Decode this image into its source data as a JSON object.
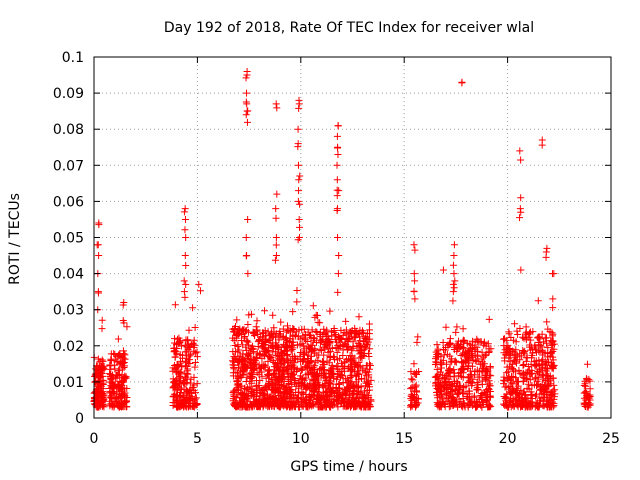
{
  "chart_data": {
    "type": "scatter",
    "title": "Day 192 of 2018, Rate Of TEC Index for receiver wlal",
    "xlabel": "GPS time / hours",
    "ylabel": "ROTI / TECUs",
    "xlim": [
      0,
      25
    ],
    "ylim": [
      0,
      0.1
    ],
    "xticks": [
      "0",
      "5",
      "10",
      "15",
      "20",
      "25"
    ],
    "yticks": [
      "0",
      "0.01",
      "0.02",
      "0.03",
      "0.04",
      "0.05",
      "0.06",
      "0.07",
      "0.08",
      "0.09",
      "0.1"
    ],
    "grid": true,
    "marker": "+",
    "marker_color": "#ff0000",
    "series": [
      {
        "name": "ROTI",
        "clusters": [
          {
            "x_start": 0.0,
            "x_end": 0.5,
            "typical_max": 0.017,
            "n": 140
          },
          {
            "x_start": 0.75,
            "x_end": 1.6,
            "typical_max": 0.018,
            "n": 170
          },
          {
            "x_start": 3.8,
            "x_end": 5.0,
            "typical_max": 0.022,
            "n": 230
          },
          {
            "x_start": 6.7,
            "x_end": 13.4,
            "typical_max": 0.025,
            "n": 1500
          },
          {
            "x_start": 15.3,
            "x_end": 15.7,
            "typical_max": 0.013,
            "n": 50
          },
          {
            "x_start": 16.5,
            "x_end": 19.2,
            "typical_max": 0.022,
            "n": 420
          },
          {
            "x_start": 19.8,
            "x_end": 22.3,
            "typical_max": 0.024,
            "n": 430
          },
          {
            "x_start": 23.7,
            "x_end": 24.0,
            "typical_max": 0.011,
            "n": 40
          }
        ],
        "peaks": [
          {
            "x": 0.2,
            "values": [
              0.054,
              0.048,
              0.045,
              0.04,
              0.035,
              0.03
            ]
          },
          {
            "x": 1.4,
            "values": [
              0.032,
              0.027
            ]
          },
          {
            "x": 4.4,
            "values": [
              0.058,
              0.055,
              0.05,
              0.045,
              0.038,
              0.035
            ]
          },
          {
            "x": 5.1,
            "values": [
              0.037
            ]
          },
          {
            "x": 7.4,
            "values": [
              0.096,
              0.095,
              0.09,
              0.087,
              0.085,
              0.084,
              0.055,
              0.05,
              0.045,
              0.04
            ]
          },
          {
            "x": 8.8,
            "values": [
              0.087,
              0.062,
              0.058,
              0.05,
              0.045
            ]
          },
          {
            "x": 9.9,
            "values": [
              0.088,
              0.087,
              0.08,
              0.076,
              0.07,
              0.066,
              0.063,
              0.06,
              0.055,
              0.05
            ]
          },
          {
            "x": 11.8,
            "values": [
              0.081,
              0.078,
              0.075,
              0.073,
              0.066,
              0.063,
              0.058,
              0.05,
              0.045,
              0.04
            ]
          },
          {
            "x": 15.5,
            "values": [
              0.048,
              0.04,
              0.038,
              0.035
            ]
          },
          {
            "x": 16.9,
            "values": [
              0.041
            ]
          },
          {
            "x": 17.4,
            "values": [
              0.048,
              0.045,
              0.04,
              0.037,
              0.035
            ]
          },
          {
            "x": 17.8,
            "values": [
              0.093
            ]
          },
          {
            "x": 20.6,
            "values": [
              0.074,
              0.061,
              0.058,
              0.057,
              0.041
            ]
          },
          {
            "x": 21.7,
            "values": [
              0.077
            ]
          },
          {
            "x": 21.9,
            "values": [
              0.047,
              0.046
            ]
          },
          {
            "x": 22.2,
            "values": [
              0.04,
              0.033
            ]
          }
        ]
      }
    ]
  }
}
